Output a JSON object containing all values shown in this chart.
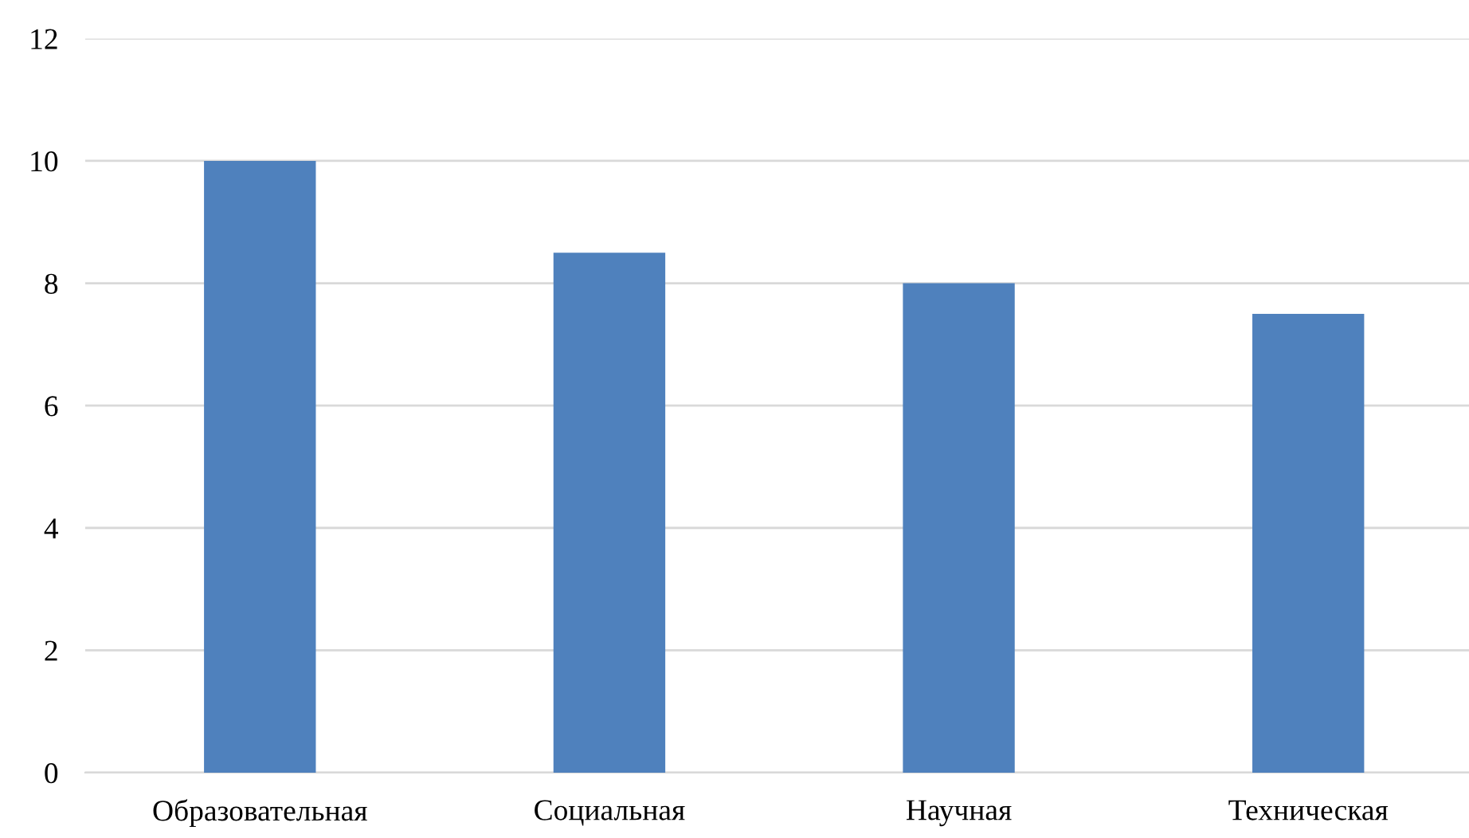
{
  "chart_data": {
    "type": "bar",
    "categories": [
      "Образовательная",
      "Социальная",
      "Научная",
      "Техническая"
    ],
    "values": [
      10,
      8.5,
      8,
      7.5
    ],
    "color": "#4f81bd",
    "ylim": [
      0,
      12
    ],
    "yticks": [
      0,
      2,
      4,
      6,
      8,
      10,
      12
    ],
    "grid": "y"
  }
}
